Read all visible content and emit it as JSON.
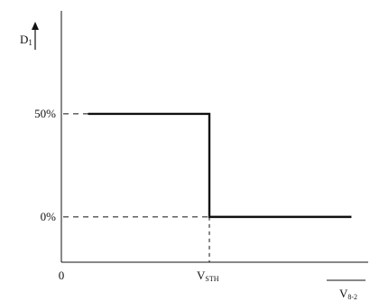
{
  "chart_data": {
    "type": "line",
    "title": "",
    "ylabel": {
      "main": "D",
      "sub": "1"
    },
    "xlabel": {
      "main": "V",
      "sub": "8-2"
    },
    "ytick_labels": [
      "50%",
      "0%"
    ],
    "yticks": [
      50,
      0
    ],
    "xtick_labels": [
      "0"
    ],
    "xticks": [
      0
    ],
    "x_marker": {
      "main": "V",
      "sub": "STH",
      "x": 1
    },
    "xlim": [
      0,
      2.0
    ],
    "ylim": [
      -22,
      100
    ],
    "series": [
      {
        "x": [
          0.18,
          1,
          1,
          1.96
        ],
        "y": [
          50,
          50,
          0,
          0
        ]
      }
    ],
    "grid": false
  }
}
